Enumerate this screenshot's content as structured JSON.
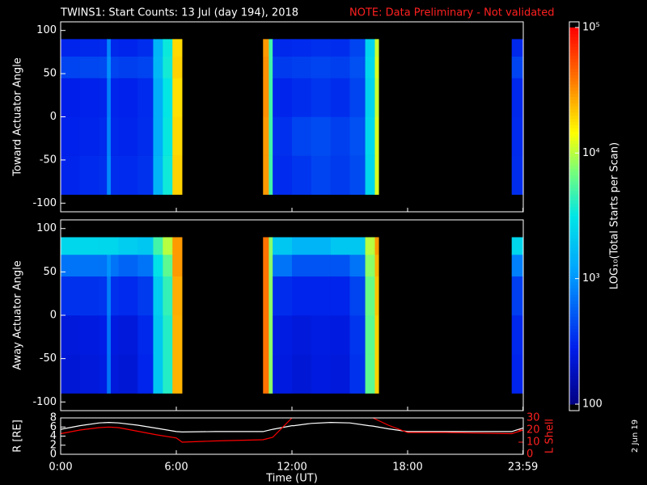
{
  "title": "TWINS1: Start Counts: 13 Jul (day 194), 2018",
  "note": "NOTE: Data Preliminary - Not validated",
  "date_stamp": "2 Jun 19",
  "colorbar": {
    "label": "LOG₁₀(Total Starts per Scan)",
    "zlim": [
      100,
      100000
    ],
    "log": true,
    "ticks": [
      {
        "value": 100000,
        "label": "10⁵"
      },
      {
        "value": 10000,
        "label": "10⁴"
      },
      {
        "value": 1000,
        "label": "10³"
      },
      100
    ]
  },
  "chart_data": [
    {
      "type": "heatmap",
      "ylabel": "Toward Actuator Angle",
      "xlim": [
        0,
        24
      ],
      "ylim": [
        -110,
        110
      ],
      "yticks": [
        100,
        50,
        0,
        -50,
        -100
      ],
      "x_edges": [
        0,
        1,
        2,
        2.4,
        2.6,
        3,
        4,
        4.8,
        5.3,
        5.8,
        6.3,
        10.5,
        10.8,
        11,
        12,
        13,
        14,
        15,
        15.8,
        16.3,
        16.5,
        23.4,
        24
      ],
      "y_edges": [
        -90,
        -45,
        0,
        45,
        70,
        90
      ],
      "z": [
        [
          300,
          320,
          340,
          900,
          330,
          320,
          350,
          1500,
          3500,
          20000,
          null,
          30000,
          5000,
          320,
          360,
          420,
          380,
          450,
          2500,
          12000,
          null,
          330
        ],
        [
          290,
          300,
          320,
          850,
          310,
          300,
          330,
          1400,
          3300,
          19000,
          null,
          30000,
          5000,
          340,
          420,
          460,
          400,
          480,
          2600,
          12000,
          null,
          320
        ],
        [
          280,
          290,
          300,
          800,
          300,
          290,
          320,
          1400,
          3200,
          18000,
          null,
          32000,
          5000,
          300,
          330,
          360,
          330,
          420,
          2400,
          11000,
          null,
          310
        ],
        [
          420,
          430,
          450,
          950,
          420,
          400,
          420,
          1600,
          3600,
          20000,
          null,
          32000,
          5000,
          380,
          400,
          420,
          400,
          480,
          2600,
          12000,
          null,
          420
        ],
        [
          300,
          310,
          320,
          850,
          310,
          300,
          330,
          1500,
          3400,
          19000,
          null,
          30000,
          5000,
          310,
          320,
          340,
          330,
          420,
          2400,
          11000,
          null,
          310
        ]
      ]
    },
    {
      "type": "heatmap",
      "ylabel": "Away Actuator Angle",
      "xlim": [
        0,
        24
      ],
      "ylim": [
        -110,
        110
      ],
      "yticks": [
        100,
        50,
        0,
        -50,
        -100
      ],
      "x_edges": [
        0,
        1,
        2,
        2.4,
        2.6,
        3,
        4,
        4.8,
        5.3,
        5.8,
        6.3,
        10.5,
        10.8,
        11,
        12,
        13,
        14,
        15,
        15.8,
        16.3,
        16.5,
        23.4,
        24
      ],
      "y_edges": [
        -90,
        -45,
        0,
        45,
        70,
        90
      ],
      "z": [
        [
          230,
          240,
          260,
          700,
          240,
          230,
          300,
          2000,
          4000,
          25000,
          null,
          40000,
          8000,
          250,
          230,
          250,
          240,
          350,
          6000,
          20000,
          null,
          300
        ],
        [
          240,
          250,
          270,
          720,
          250,
          240,
          310,
          2000,
          4000,
          25000,
          null,
          40000,
          8000,
          260,
          240,
          260,
          250,
          360,
          6000,
          20000,
          null,
          310
        ],
        [
          350,
          350,
          360,
          800,
          340,
          320,
          380,
          2200,
          4500,
          26000,
          null,
          40000,
          8000,
          330,
          300,
          300,
          300,
          420,
          6500,
          22000,
          null,
          400
        ],
        [
          700,
          700,
          700,
          1000,
          700,
          600,
          700,
          3000,
          6000,
          30000,
          null,
          40000,
          8000,
          700,
          500,
          500,
          500,
          700,
          8000,
          25000,
          null,
          800
        ],
        [
          2500,
          2500,
          2500,
          2500,
          2500,
          2200,
          2000,
          5000,
          10000,
          30000,
          null,
          40000,
          8000,
          2000,
          1500,
          1500,
          2000,
          2000,
          10000,
          30000,
          null,
          2500
        ]
      ]
    },
    {
      "type": "line",
      "xlabel": "Time (UT)",
      "ylabel": "R [RE]",
      "y2label": "L Shell",
      "xlim": [
        0,
        24
      ],
      "ylim": [
        0,
        8
      ],
      "yticks": [
        0,
        2,
        4,
        6,
        8
      ],
      "y2lim": [
        0,
        30
      ],
      "y2ticks": [
        0,
        10,
        20,
        30
      ],
      "xticks": [
        {
          "value": 0,
          "label": "0:00"
        },
        {
          "value": 6,
          "label": "6:00"
        },
        {
          "value": 12,
          "label": "12:00"
        },
        {
          "value": 18,
          "label": "18:00"
        },
        {
          "value": 23.983,
          "label": "23:59"
        }
      ],
      "x": [
        0,
        1,
        2,
        2.5,
        3,
        4,
        5,
        6,
        6.3,
        8,
        10.5,
        11,
        12,
        12.1,
        13,
        14,
        15,
        16,
        16.2,
        17,
        18,
        20,
        23.4,
        24
      ],
      "series": [
        {
          "name": "R",
          "color": "#ffffff",
          "values": [
            5.5,
            6.3,
            6.9,
            7,
            6.9,
            6.4,
            5.7,
            5,
            4.9,
            5,
            5,
            5.5,
            6.3,
            6.3,
            6.8,
            7,
            6.9,
            6.3,
            6.2,
            5.6,
            5,
            5,
            5,
            5.8
          ]
        },
        {
          "name": "L Shell",
          "color": "#ff0000",
          "axis": "y2",
          "values": [
            17,
            20,
            22,
            22.5,
            22,
            19,
            16,
            13.5,
            10,
            11,
            12,
            14,
            30,
            null,
            null,
            null,
            null,
            null,
            30,
            24,
            18,
            18,
            17,
            20
          ]
        }
      ]
    }
  ]
}
